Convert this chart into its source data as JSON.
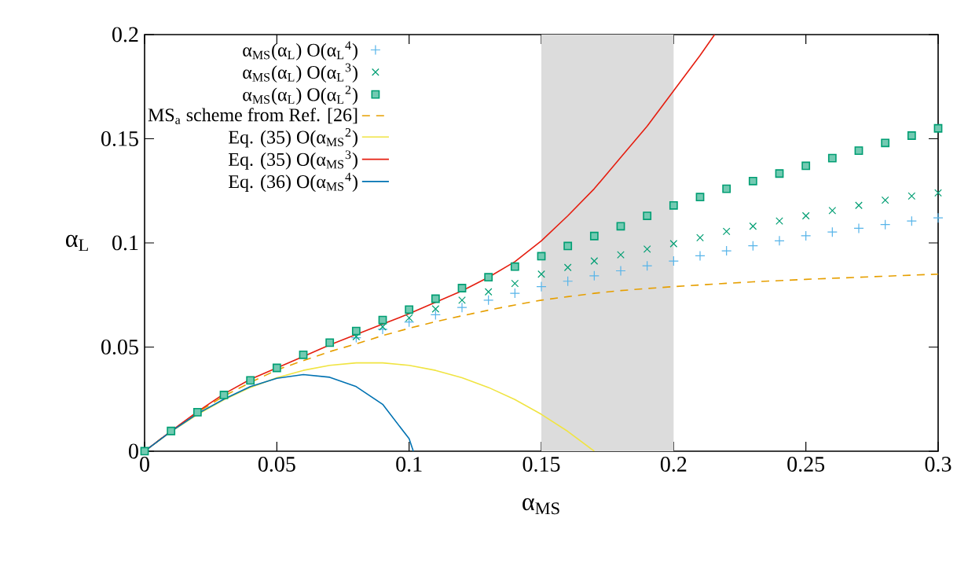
{
  "chart_data": {
    "type": "scatter",
    "xlabel": "α$_{MS}$",
    "ylabel": "α$_{L}$",
    "xlim": [
      0,
      0.3
    ],
    "ylim": [
      0,
      0.2
    ],
    "xticks": [
      0,
      0.05,
      0.1,
      0.15,
      0.2,
      0.25,
      0.3
    ],
    "yticks": [
      0,
      0.05,
      0.1,
      0.15,
      0.2
    ],
    "legend": "top left",
    "grid": false,
    "bands": [
      {
        "axis": "x",
        "from": 0.15,
        "to": 0.2,
        "color": "#dcdcdc"
      }
    ],
    "x": [
      0,
      0.01,
      0.02,
      0.03,
      0.04,
      0.05,
      0.06,
      0.07,
      0.08,
      0.09,
      0.1,
      0.11,
      0.12,
      0.13,
      0.14,
      0.15,
      0.16,
      0.17,
      0.18,
      0.19,
      0.2,
      0.21,
      0.22,
      0.23,
      0.24,
      0.25,
      0.26,
      0.27,
      0.28,
      0.29,
      0.3
    ],
    "series": [
      {
        "name": "α$_{MS}$(α$_{L}$) O(α$_{L}$$^{4}$)",
        "marker": "plus",
        "color": "#56b4e9",
        "values": [
          null,
          null,
          null,
          null,
          null,
          null,
          null,
          null,
          0.0545,
          0.0585,
          0.062,
          0.0655,
          0.069,
          0.0725,
          0.0758,
          0.079,
          0.0816,
          0.0842,
          0.0866,
          0.089,
          0.0913,
          0.0938,
          0.0962,
          0.0986,
          0.101,
          0.1034,
          0.1052,
          0.107,
          0.1088,
          0.1105,
          0.112
        ]
      },
      {
        "name": "α$_{MS}$(α$_{L}$) O(α$_{L}$$^{3}$)",
        "marker": "cross",
        "color": "#009e73",
        "values": [
          null,
          null,
          null,
          null,
          null,
          null,
          null,
          null,
          0.055,
          0.0597,
          0.064,
          0.0683,
          0.0725,
          0.0765,
          0.0805,
          0.085,
          0.0882,
          0.0913,
          0.0943,
          0.097,
          0.0996,
          0.1025,
          0.1055,
          0.108,
          0.1105,
          0.113,
          0.1155,
          0.118,
          0.1205,
          0.1225,
          0.124
        ]
      },
      {
        "name": "α$_{MS}$(α$_{L}$) O(α$_{L}$$^{2}$)",
        "marker": "square",
        "color": "#009e73",
        "values": [
          0,
          0.0097,
          0.0187,
          0.027,
          0.034,
          0.04,
          0.0463,
          0.0521,
          0.0577,
          0.063,
          0.068,
          0.0732,
          0.0783,
          0.0835,
          0.0886,
          0.0936,
          0.0985,
          0.1033,
          0.108,
          0.113,
          0.118,
          0.122,
          0.126,
          0.1297,
          0.1333,
          0.137,
          0.1407,
          0.1443,
          0.148,
          0.1515,
          0.155
        ]
      },
      {
        "name": "MS$_{a}$ scheme from Ref. [26]",
        "type": "line",
        "line_style": "dashed",
        "color": "#e69f00",
        "values": [
          0,
          0.0097,
          0.0186,
          0.0265,
          0.033,
          0.039,
          0.0435,
          0.0478,
          0.0515,
          0.0555,
          0.059,
          0.0622,
          0.065,
          0.0677,
          0.0702,
          0.0725,
          0.0742,
          0.0758,
          0.0771,
          0.0781,
          0.079,
          0.0798,
          0.0806,
          0.0813,
          0.0819,
          0.0825,
          0.083,
          0.0835,
          0.084,
          0.0845,
          0.085
        ]
      },
      {
        "name": "Eq. (35) O(α$_{MS}$$^{2}$)",
        "type": "line",
        "line_style": "solid",
        "color": "#f0e442",
        "x": [
          0,
          0.01,
          0.02,
          0.03,
          0.04,
          0.05,
          0.06,
          0.07,
          0.08,
          0.09,
          0.1,
          0.11,
          0.12,
          0.13,
          0.14,
          0.15,
          0.16,
          0.17
        ],
        "values": [
          0,
          0.0094,
          0.0176,
          0.0247,
          0.0306,
          0.0353,
          0.0388,
          0.0412,
          0.0424,
          0.0424,
          0.0412,
          0.0388,
          0.0353,
          0.0306,
          0.0248,
          0.0177,
          0.0095,
          0
        ]
      },
      {
        "name": "Eq. (35) O(α$_{MS}$$^{3}$)",
        "type": "line",
        "line_style": "solid",
        "color": "#e51e10",
        "x": [
          0,
          0.01,
          0.02,
          0.03,
          0.04,
          0.05,
          0.06,
          0.07,
          0.08,
          0.09,
          0.1,
          0.11,
          0.12,
          0.13,
          0.14,
          0.15,
          0.16,
          0.17,
          0.18,
          0.19,
          0.2,
          0.21,
          0.2155
        ],
        "values": [
          0,
          0.0097,
          0.019,
          0.0275,
          0.0345,
          0.04,
          0.0455,
          0.051,
          0.056,
          0.061,
          0.066,
          0.0715,
          0.077,
          0.0835,
          0.091,
          0.101,
          0.113,
          0.126,
          0.141,
          0.156,
          0.173,
          0.19,
          0.2
        ]
      },
      {
        "name": "Eq. (36) O(α$_{MS}$$^{4}$)",
        "type": "line",
        "line_style": "solid",
        "color": "#0072b2",
        "x": [
          0,
          0.01,
          0.02,
          0.03,
          0.04,
          0.05,
          0.06,
          0.07,
          0.08,
          0.09,
          0.1,
          0.1016
        ],
        "values": [
          0,
          0.0095,
          0.018,
          0.025,
          0.031,
          0.035,
          0.0368,
          0.0355,
          0.031,
          0.0225,
          0.006,
          0
        ]
      }
    ]
  }
}
